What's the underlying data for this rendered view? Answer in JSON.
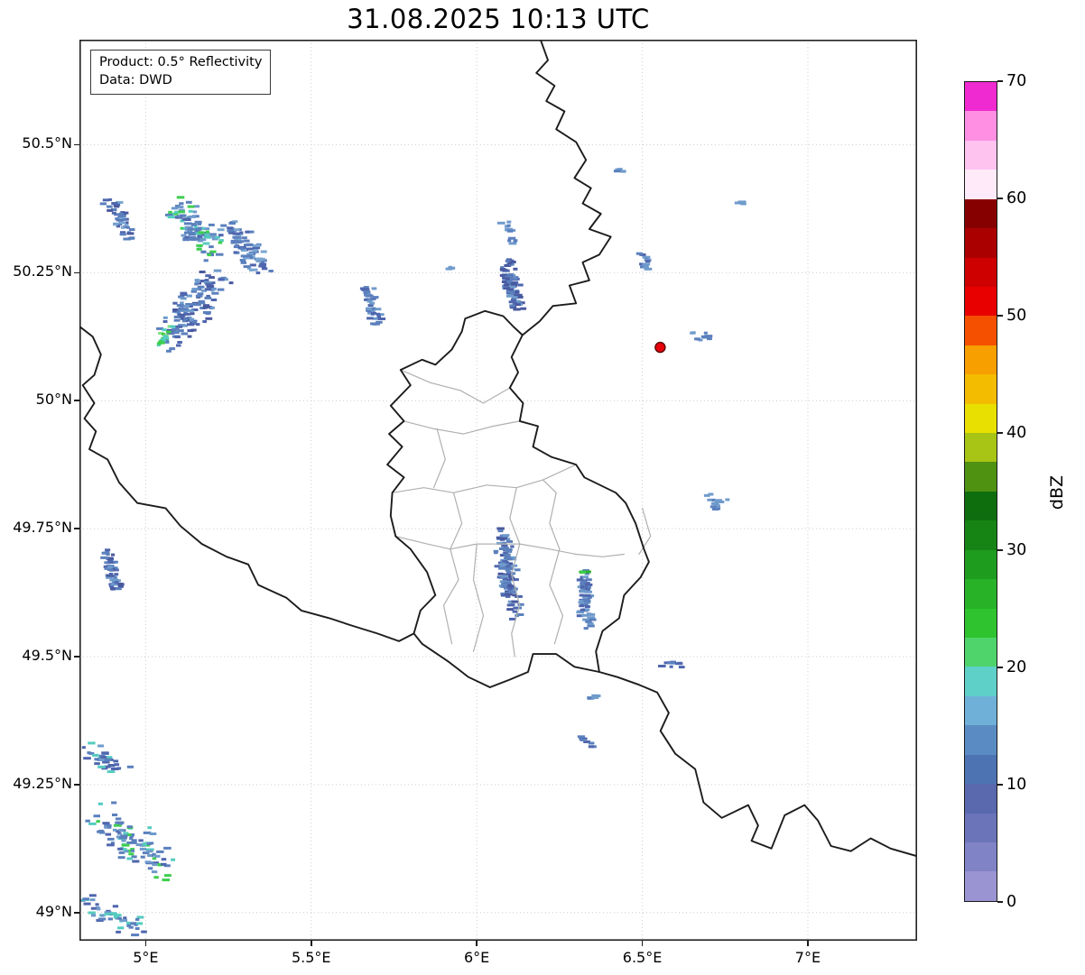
{
  "title": "31.08.2025 10:13 UTC",
  "annotation": {
    "product": "Product: 0.5° Reflectivity",
    "source": "Data: DWD"
  },
  "axes": {
    "lon_min": 4.8,
    "lon_max": 7.33,
    "lat_min": 48.945,
    "lat_max": 50.705,
    "x_ticks": [
      {
        "value": 5.0,
        "label": "5°E"
      },
      {
        "value": 5.5,
        "label": "5.5°E"
      },
      {
        "value": 6.0,
        "label": "6°E"
      },
      {
        "value": 6.5,
        "label": "6.5°E"
      },
      {
        "value": 7.0,
        "label": "7°E"
      }
    ],
    "y_ticks": [
      {
        "value": 50.5,
        "label": "50.5°N"
      },
      {
        "value": 50.25,
        "label": "50.25°N"
      },
      {
        "value": 50.0,
        "label": "50°N"
      },
      {
        "value": 49.75,
        "label": "49.75°N"
      },
      {
        "value": 49.5,
        "label": "49.5°N"
      },
      {
        "value": 49.25,
        "label": "49.25°N"
      },
      {
        "value": 49.0,
        "label": "49°N"
      }
    ]
  },
  "colorbar": {
    "label": "dBZ",
    "min": 0,
    "max": 70,
    "ticks": [
      {
        "value": 0,
        "label": "0"
      },
      {
        "value": 10,
        "label": "10"
      },
      {
        "value": 20,
        "label": "20"
      },
      {
        "value": 30,
        "label": "30"
      },
      {
        "value": 40,
        "label": "40"
      },
      {
        "value": 50,
        "label": "50"
      },
      {
        "value": 60,
        "label": "60"
      },
      {
        "value": 70,
        "label": "70"
      }
    ],
    "colors_bottom_to_top": [
      "#9a94d2",
      "#8083c5",
      "#6b74b9",
      "#5a68ad",
      "#4e73b3",
      "#5a8cc3",
      "#6fb0d8",
      "#5fd0c8",
      "#4ed46b",
      "#2fc42f",
      "#28b228",
      "#1e9c1e",
      "#158415",
      "#0e6e0e",
      "#4f9212",
      "#a8c414",
      "#e8e000",
      "#f4bc00",
      "#f79e00",
      "#f55000",
      "#e80000",
      "#cf0000",
      "#ab0000",
      "#870000",
      "#ffeaf9",
      "#ffc3f0",
      "#ff8fe3",
      "#ef2ad0"
    ]
  },
  "map": {
    "grid_color": "#cccccc",
    "border_color": "#1c1c1c",
    "admin_color": "#b0b0b0",
    "radar_site": {
      "lon": 6.554,
      "lat": 50.104,
      "color": "#e8000b",
      "edge_color": "#5a0000"
    },
    "black_borders": [
      [
        [
          6.19,
          50.71
        ],
        [
          6.215,
          50.665
        ],
        [
          6.18,
          50.64
        ],
        [
          6.235,
          50.615
        ],
        [
          6.21,
          50.585
        ],
        [
          6.265,
          50.565
        ],
        [
          6.24,
          50.53
        ],
        [
          6.3,
          50.505
        ],
        [
          6.33,
          50.47
        ],
        [
          6.295,
          50.435
        ],
        [
          6.345,
          50.415
        ],
        [
          6.32,
          50.385
        ],
        [
          6.375,
          50.365
        ],
        [
          6.34,
          50.335
        ],
        [
          6.405,
          50.32
        ],
        [
          6.37,
          50.285
        ],
        [
          6.32,
          50.27
        ],
        [
          6.34,
          50.235
        ],
        [
          6.28,
          50.225
        ],
        [
          6.3,
          50.19
        ],
        [
          6.23,
          50.185
        ],
        [
          6.19,
          50.155
        ],
        [
          6.138,
          50.128
        ]
      ],
      [
        [
          6.138,
          50.128
        ],
        [
          6.105,
          50.085
        ],
        [
          6.125,
          50.055
        ],
        [
          6.1,
          50.025
        ],
        [
          6.14,
          49.995
        ],
        [
          6.13,
          49.96
        ],
        [
          6.185,
          49.95
        ],
        [
          6.17,
          49.91
        ],
        [
          6.225,
          49.89
        ],
        [
          6.3,
          49.875
        ],
        [
          6.325,
          49.85
        ],
        [
          6.42,
          49.82
        ],
        [
          6.45,
          49.8
        ],
        [
          6.48,
          49.76
        ],
        [
          6.505,
          49.71
        ],
        [
          6.52,
          49.685
        ],
        [
          6.495,
          49.655
        ],
        [
          6.445,
          49.62
        ],
        [
          6.43,
          49.575
        ],
        [
          6.38,
          49.55
        ],
        [
          6.36,
          49.51
        ],
        [
          6.37,
          49.47
        ],
        [
          6.295,
          49.48
        ],
        [
          6.24,
          49.505
        ],
        [
          6.17,
          49.505
        ],
        [
          6.155,
          49.47
        ],
        [
          6.1,
          49.455
        ],
        [
          6.04,
          49.44
        ],
        [
          5.975,
          49.46
        ],
        [
          5.915,
          49.49
        ],
        [
          5.835,
          49.525
        ],
        [
          5.81,
          49.545
        ],
        [
          5.83,
          49.59
        ],
        [
          5.875,
          49.62
        ],
        [
          5.85,
          49.665
        ],
        [
          5.8,
          49.71
        ],
        [
          5.755,
          49.735
        ],
        [
          5.74,
          49.775
        ],
        [
          5.745,
          49.82
        ],
        [
          5.78,
          49.85
        ],
        [
          5.73,
          49.875
        ],
        [
          5.775,
          49.91
        ],
        [
          5.735,
          49.935
        ],
        [
          5.78,
          49.96
        ],
        [
          5.74,
          49.99
        ],
        [
          5.8,
          50.03
        ],
        [
          5.77,
          50.06
        ],
        [
          5.835,
          50.08
        ],
        [
          5.875,
          50.07
        ],
        [
          5.925,
          50.1
        ],
        [
          5.955,
          50.135
        ],
        [
          5.965,
          50.16
        ],
        [
          6.025,
          50.175
        ],
        [
          6.08,
          50.165
        ],
        [
          6.11,
          50.145
        ],
        [
          6.138,
          50.128
        ]
      ],
      [
        [
          4.8,
          50.145
        ],
        [
          4.84,
          50.125
        ],
        [
          4.865,
          50.09
        ],
        [
          4.845,
          50.05
        ],
        [
          4.81,
          50.03
        ],
        [
          4.845,
          49.995
        ],
        [
          4.815,
          49.965
        ],
        [
          4.85,
          49.94
        ],
        [
          4.83,
          49.905
        ],
        [
          4.885,
          49.885
        ],
        [
          4.92,
          49.84
        ],
        [
          4.975,
          49.8
        ],
        [
          5.06,
          49.79
        ],
        [
          5.105,
          49.755
        ],
        [
          5.17,
          49.72
        ],
        [
          5.245,
          49.695
        ],
        [
          5.31,
          49.68
        ],
        [
          5.34,
          49.64
        ],
        [
          5.425,
          49.615
        ],
        [
          5.47,
          49.59
        ],
        [
          5.555,
          49.575
        ],
        [
          5.625,
          49.56
        ],
        [
          5.7,
          49.545
        ],
        [
          5.765,
          49.53
        ],
        [
          5.81,
          49.545
        ]
      ],
      [
        [
          6.37,
          49.47
        ],
        [
          6.425,
          49.46
        ],
        [
          6.49,
          49.445
        ],
        [
          6.545,
          49.43
        ],
        [
          6.58,
          49.39
        ],
        [
          6.555,
          49.355
        ],
        [
          6.6,
          49.31
        ],
        [
          6.66,
          49.28
        ],
        [
          6.685,
          49.215
        ],
        [
          6.74,
          49.185
        ],
        [
          6.82,
          49.21
        ],
        [
          6.85,
          49.17
        ],
        [
          6.83,
          49.14
        ],
        [
          6.89,
          49.125
        ],
        [
          6.93,
          49.19
        ],
        [
          6.99,
          49.21
        ],
        [
          7.03,
          49.18
        ],
        [
          7.07,
          49.13
        ],
        [
          7.13,
          49.12
        ],
        [
          7.19,
          49.145
        ],
        [
          7.25,
          49.125
        ],
        [
          7.33,
          49.11
        ]
      ]
    ],
    "gray_borders": [
      [
        [
          5.77,
          50.06
        ],
        [
          5.86,
          50.035
        ],
        [
          5.95,
          50.02
        ],
        [
          6.02,
          49.995
        ],
        [
          6.1,
          50.025
        ]
      ],
      [
        [
          5.78,
          49.96
        ],
        [
          5.87,
          49.945
        ],
        [
          5.96,
          49.935
        ],
        [
          6.05,
          49.95
        ],
        [
          6.13,
          49.96
        ]
      ],
      [
        [
          5.745,
          49.82
        ],
        [
          5.84,
          49.83
        ],
        [
          5.93,
          49.82
        ],
        [
          6.03,
          49.835
        ],
        [
          6.12,
          49.83
        ],
        [
          6.2,
          49.845
        ],
        [
          6.3,
          49.875
        ]
      ],
      [
        [
          5.88,
          49.945
        ],
        [
          5.905,
          49.885
        ],
        [
          5.87,
          49.83
        ]
      ],
      [
        [
          5.93,
          49.82
        ],
        [
          5.955,
          49.76
        ],
        [
          5.92,
          49.71
        ],
        [
          5.945,
          49.65
        ],
        [
          5.9,
          49.6
        ],
        [
          5.925,
          49.525
        ]
      ],
      [
        [
          6.12,
          49.83
        ],
        [
          6.1,
          49.77
        ],
        [
          6.13,
          49.72
        ],
        [
          6.105,
          49.66
        ],
        [
          6.13,
          49.6
        ],
        [
          6.105,
          49.545
        ],
        [
          6.115,
          49.5
        ]
      ],
      [
        [
          5.755,
          49.735
        ],
        [
          5.85,
          49.72
        ],
        [
          5.92,
          49.71
        ],
        [
          6.0,
          49.72
        ],
        [
          6.13,
          49.72
        ],
        [
          6.22,
          49.71
        ],
        [
          6.3,
          49.7
        ],
        [
          6.38,
          49.695
        ],
        [
          6.445,
          49.7
        ]
      ],
      [
        [
          6.2,
          49.845
        ],
        [
          6.24,
          49.82
        ],
        [
          6.22,
          49.76
        ],
        [
          6.25,
          49.71
        ],
        [
          6.22,
          49.64
        ],
        [
          6.26,
          49.58
        ],
        [
          6.235,
          49.525
        ]
      ],
      [
        [
          6.0,
          49.72
        ],
        [
          5.99,
          49.65
        ],
        [
          6.02,
          49.58
        ],
        [
          5.99,
          49.51
        ]
      ],
      [
        [
          6.5,
          49.79
        ],
        [
          6.525,
          49.735
        ],
        [
          6.49,
          49.7
        ]
      ]
    ],
    "echo_clusters": [
      {
        "name": "northwest-cell-1",
        "lon": 4.925,
        "lat": 50.355,
        "w": 0.1,
        "h": 0.1,
        "n": 45,
        "angle": 60,
        "seed": 11,
        "colors": [
          "#5b80bd",
          "#5b80bd",
          "#4f66ae",
          "#7aa6d2",
          "#49599f"
        ]
      },
      {
        "name": "northwest-cell-2",
        "lon": 5.155,
        "lat": 50.335,
        "w": 0.18,
        "h": 0.12,
        "n": 100,
        "angle": 50,
        "seed": 12,
        "colors": [
          "#5b80bd",
          "#5b80bd",
          "#6f9bcc",
          "#4f66ae",
          "#55cbc0",
          "#3ecf4f"
        ]
      },
      {
        "name": "northwest-cell-3",
        "lon": 5.305,
        "lat": 50.295,
        "w": 0.15,
        "h": 0.13,
        "n": 75,
        "angle": 55,
        "seed": 13,
        "colors": [
          "#5b80bd",
          "#4f66ae",
          "#5b80bd",
          "#7aa6d2"
        ]
      },
      {
        "name": "northwest-band",
        "lon": 5.14,
        "lat": 50.18,
        "w": 0.22,
        "h": 0.2,
        "n": 130,
        "angle": 127,
        "seed": 14,
        "colors": [
          "#5b80bd",
          "#4f66ae",
          "#5b80bd",
          "#6f9bcc",
          "#49599f"
        ]
      },
      {
        "name": "northwest-band-green-core",
        "lon": 5.055,
        "lat": 50.125,
        "w": 0.055,
        "h": 0.06,
        "n": 16,
        "angle": 120,
        "seed": 15,
        "colors": [
          "#3ecf4f",
          "#2db52d",
          "#7be37b",
          "#55cbc0"
        ]
      },
      {
        "name": "central-west-cell",
        "lon": 5.685,
        "lat": 50.185,
        "w": 0.09,
        "h": 0.08,
        "n": 40,
        "angle": 70,
        "seed": 16,
        "colors": [
          "#5b80bd",
          "#4f66ae",
          "#6f9bcc"
        ]
      },
      {
        "name": "north-central-cell",
        "lon": 6.105,
        "lat": 50.225,
        "w": 0.1,
        "h": 0.11,
        "n": 90,
        "angle": 75,
        "seed": 17,
        "colors": [
          "#5b80bd",
          "#4f66ae",
          "#49599f",
          "#6f9bcc"
        ]
      },
      {
        "name": "north-central-fragment",
        "lon": 6.1,
        "lat": 50.33,
        "w": 0.07,
        "h": 0.05,
        "n": 14,
        "angle": 60,
        "seed": 18,
        "colors": [
          "#5b80bd",
          "#6f9bcc"
        ]
      },
      {
        "name": "speck-west-of-cell",
        "lon": 5.925,
        "lat": 50.26,
        "w": 0.025,
        "h": 0.02,
        "n": 4,
        "angle": 0,
        "seed": 19,
        "colors": [
          "#6f9bcc"
        ]
      },
      {
        "name": "speck-northeast-1",
        "lon": 6.44,
        "lat": 50.45,
        "w": 0.03,
        "h": 0.02,
        "n": 5,
        "angle": 0,
        "seed": 20,
        "colors": [
          "#5b80bd",
          "#6f9bcc"
        ]
      },
      {
        "name": "speck-northeast-2",
        "lon": 6.8,
        "lat": 50.385,
        "w": 0.03,
        "h": 0.015,
        "n": 4,
        "angle": 0,
        "seed": 21,
        "colors": [
          "#6f9bcc"
        ]
      },
      {
        "name": "speck-northeast-3",
        "lon": 6.51,
        "lat": 50.27,
        "w": 0.06,
        "h": 0.06,
        "n": 12,
        "angle": 80,
        "seed": 22,
        "colors": [
          "#5b80bd",
          "#6f9bcc",
          "#4f66ae"
        ]
      },
      {
        "name": "speck-near-radar",
        "lon": 6.68,
        "lat": 50.125,
        "w": 0.09,
        "h": 0.04,
        "n": 10,
        "angle": 15,
        "seed": 23,
        "colors": [
          "#6f9bcc",
          "#5b80bd"
        ]
      },
      {
        "name": "speck-east-1",
        "lon": 6.71,
        "lat": 49.805,
        "w": 0.06,
        "h": 0.055,
        "n": 10,
        "angle": 45,
        "seed": 24,
        "colors": [
          "#6f9bcc",
          "#5b80bd"
        ]
      },
      {
        "name": "west-streak",
        "lon": 4.9,
        "lat": 49.665,
        "w": 0.07,
        "h": 0.12,
        "n": 50,
        "angle": 75,
        "seed": 25,
        "colors": [
          "#5b80bd",
          "#4f66ae",
          "#49599f",
          "#6f9bcc"
        ]
      },
      {
        "name": "luxembourg-central-streaks",
        "lon": 6.095,
        "lat": 49.66,
        "w": 0.11,
        "h": 0.21,
        "n": 120,
        "angle": 80,
        "seed": 26,
        "colors": [
          "#5b80bd",
          "#4f66ae",
          "#49599f",
          "#6f9bcc",
          "#5b80bd"
        ]
      },
      {
        "name": "luxembourg-east-streaks",
        "lon": 6.33,
        "lat": 49.61,
        "w": 0.09,
        "h": 0.14,
        "n": 65,
        "angle": 85,
        "seed": 27,
        "colors": [
          "#5b80bd",
          "#4f66ae",
          "#6f9bcc"
        ]
      },
      {
        "name": "luxembourg-east-green-dash",
        "lon": 6.325,
        "lat": 49.665,
        "w": 0.035,
        "h": 0.012,
        "n": 4,
        "angle": 0,
        "seed": 28,
        "colors": [
          "#2db52d",
          "#3ecf4f"
        ]
      },
      {
        "name": "southeast-speck-1",
        "lon": 6.595,
        "lat": 49.485,
        "w": 0.07,
        "h": 0.03,
        "n": 9,
        "angle": 10,
        "seed": 29,
        "colors": [
          "#5b80bd",
          "#4f66ae"
        ]
      },
      {
        "name": "southeast-speck-2",
        "lon": 6.355,
        "lat": 49.42,
        "w": 0.05,
        "h": 0.02,
        "n": 6,
        "angle": 0,
        "seed": 30,
        "colors": [
          "#5b80bd",
          "#6f9bcc"
        ]
      },
      {
        "name": "southeast-speck-3",
        "lon": 6.33,
        "lat": 49.335,
        "w": 0.06,
        "h": 0.035,
        "n": 8,
        "angle": 20,
        "seed": 31,
        "colors": [
          "#5b80bd",
          "#4f66ae"
        ]
      },
      {
        "name": "southwest-streak-1",
        "lon": 4.875,
        "lat": 49.295,
        "w": 0.13,
        "h": 0.09,
        "n": 35,
        "angle": 35,
        "seed": 32,
        "colors": [
          "#5b80bd",
          "#55cbc0",
          "#4f66ae",
          "#6f9bcc"
        ]
      },
      {
        "name": "southwest-streak-2",
        "lon": 4.96,
        "lat": 49.14,
        "w": 0.24,
        "h": 0.17,
        "n": 100,
        "angle": 35,
        "seed": 33,
        "colors": [
          "#5b80bd",
          "#4f66ae",
          "#55cbc0",
          "#3ecf4f",
          "#6f9bcc",
          "#5b80bd"
        ]
      },
      {
        "name": "southwest-streak-3",
        "lon": 4.91,
        "lat": 48.99,
        "w": 0.22,
        "h": 0.09,
        "n": 45,
        "angle": 25,
        "seed": 34,
        "colors": [
          "#5b80bd",
          "#4f66ae",
          "#55cbc0",
          "#6f9bcc"
        ]
      },
      {
        "name": "speck-east-2",
        "lon": 6.74,
        "lat": 49.805,
        "w": 0.03,
        "h": 0.03,
        "n": 4,
        "angle": 0,
        "seed": 35,
        "colors": [
          "#6f9bcc"
        ]
      }
    ]
  }
}
